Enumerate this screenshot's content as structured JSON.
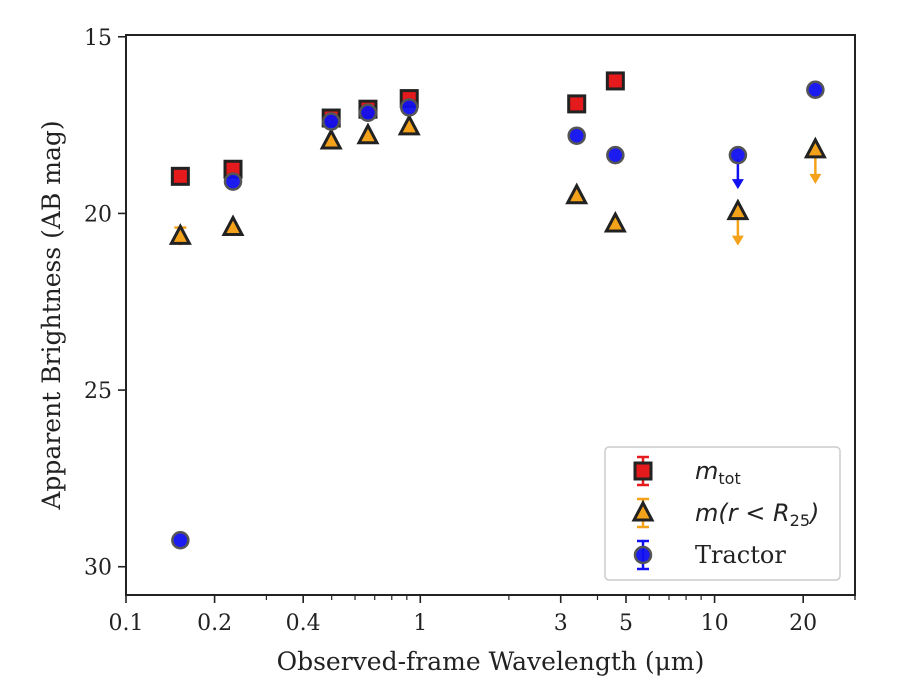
{
  "chart_data": {
    "type": "scatter",
    "title": "",
    "xlabel": "Observed-frame Wavelength (μm)",
    "ylabel": "Apparent Brightness (AB mag)",
    "xscale": "log",
    "xlim": [
      0.1,
      30
    ],
    "ylim": [
      30.8,
      14.95
    ],
    "y_inverted": true,
    "x_ticks": [
      0.1,
      0.2,
      0.4,
      1,
      3,
      5,
      10,
      20
    ],
    "x_tick_labels": [
      "0.1",
      "0.2",
      "0.4",
      "1",
      "3",
      "5",
      "10",
      "20"
    ],
    "y_ticks": [
      15,
      20,
      25,
      30
    ],
    "y_tick_labels": [
      "15",
      "20",
      "25",
      "30"
    ],
    "grid": false,
    "legend_position": "bottom-right",
    "series": [
      {
        "name": "m_tot",
        "label_main": "m",
        "label_sub": "tot",
        "marker": "square",
        "color": "#e41a1c",
        "edge": "#222222",
        "points": [
          {
            "x": 0.153,
            "y": 18.95
          },
          {
            "x": 0.231,
            "y": 18.75
          },
          {
            "x": 0.498,
            "y": 17.3
          },
          {
            "x": 0.664,
            "y": 17.05
          },
          {
            "x": 0.917,
            "y": 16.75
          },
          {
            "x": 3.4,
            "y": 16.9
          },
          {
            "x": 4.6,
            "y": 16.25
          }
        ]
      },
      {
        "name": "m(r < R_25)",
        "label_main": "m(r < R",
        "label_sub": "25",
        "label_end": ")",
        "marker": "triangle",
        "color": "#f5a21b",
        "edge": "#222222",
        "points": [
          {
            "x": 0.153,
            "y": 20.65,
            "err": 0.25
          },
          {
            "x": 0.231,
            "y": 20.4
          },
          {
            "x": 0.498,
            "y": 17.95
          },
          {
            "x": 0.664,
            "y": 17.8
          },
          {
            "x": 0.917,
            "y": 17.55
          },
          {
            "x": 3.4,
            "y": 19.5
          },
          {
            "x": 4.6,
            "y": 20.3
          },
          {
            "x": 12.0,
            "y": 19.95,
            "upper_limit": true
          },
          {
            "x": 22.0,
            "y": 18.2,
            "upper_limit": true
          }
        ]
      },
      {
        "name": "Tractor",
        "marker": "circle",
        "color": "#1010f0",
        "edge": "#555555",
        "points": [
          {
            "x": 0.153,
            "y": 29.25
          },
          {
            "x": 0.231,
            "y": 19.1
          },
          {
            "x": 0.498,
            "y": 17.4
          },
          {
            "x": 0.664,
            "y": 17.15
          },
          {
            "x": 0.917,
            "y": 17.0
          },
          {
            "x": 3.4,
            "y": 17.8
          },
          {
            "x": 4.6,
            "y": 18.35
          },
          {
            "x": 12.0,
            "y": 18.35,
            "upper_limit": true
          },
          {
            "x": 22.0,
            "y": 16.5
          }
        ]
      }
    ]
  }
}
